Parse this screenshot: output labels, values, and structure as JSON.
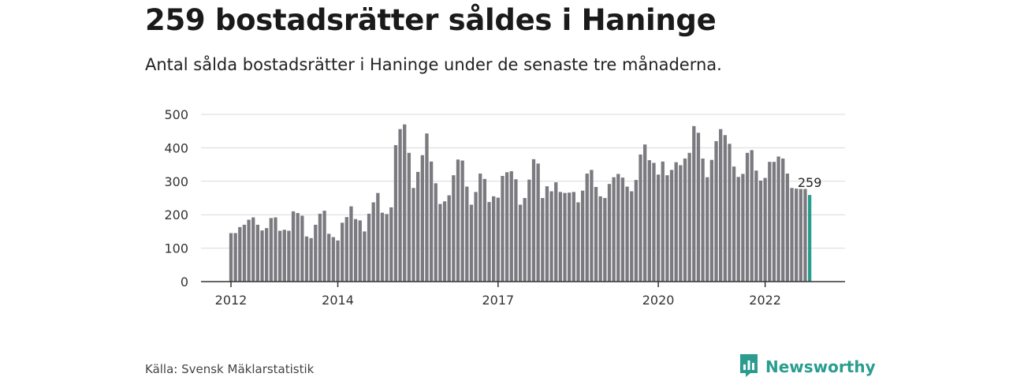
{
  "header": {
    "title": "259 bostadsrätter såldes i Haninge",
    "subtitle": "Antal sålda bostadsrätter i Haninge under de senaste tre månaderna."
  },
  "footer": {
    "source": "Källa: Svensk Mäklarstatistik",
    "brand": "Newsworthy",
    "brand_icon": "newsworthy-logo-icon"
  },
  "colors": {
    "bar": "#7a7a80",
    "highlight": "#2a9d8f",
    "grid": "#d9d9d9",
    "axis": "#333333"
  },
  "chart_data": {
    "type": "bar",
    "title": "259 bostadsrätter såldes i Haninge",
    "subtitle": "Antal sålda bostadsrätter i Haninge under de senaste tre månaderna.",
    "x_start": "2012-01",
    "x_interval": "month",
    "x_ticks": [
      "2012",
      "2014",
      "2017",
      "2020",
      "2022"
    ],
    "y_ticks": [
      0,
      100,
      200,
      300,
      400,
      500
    ],
    "ylim": [
      0,
      500
    ],
    "grid": true,
    "highlight_label": "259",
    "values": [
      145,
      145,
      163,
      170,
      185,
      192,
      170,
      153,
      160,
      190,
      192,
      152,
      155,
      152,
      210,
      205,
      197,
      135,
      130,
      170,
      203,
      212,
      143,
      133,
      123,
      176,
      193,
      225,
      187,
      183,
      150,
      203,
      237,
      265,
      206,
      202,
      222,
      408,
      456,
      470,
      385,
      280,
      328,
      378,
      443,
      359,
      294,
      232,
      240,
      258,
      318,
      365,
      362,
      284,
      230,
      268,
      323,
      307,
      238,
      255,
      251,
      316,
      327,
      330,
      306,
      230,
      250,
      305,
      366,
      353,
      250,
      285,
      270,
      297,
      268,
      265,
      266,
      268,
      237,
      272,
      323,
      334,
      283,
      255,
      250,
      292,
      312,
      322,
      311,
      284,
      270,
      304,
      380,
      410,
      363,
      355,
      320,
      359,
      318,
      334,
      357,
      348,
      368,
      385,
      465,
      445,
      368,
      312,
      364,
      420,
      456,
      438,
      412,
      344,
      313,
      322,
      385,
      393,
      332,
      302,
      310,
      358,
      358,
      374,
      368,
      323,
      280,
      278,
      277,
      277,
      259
    ]
  }
}
